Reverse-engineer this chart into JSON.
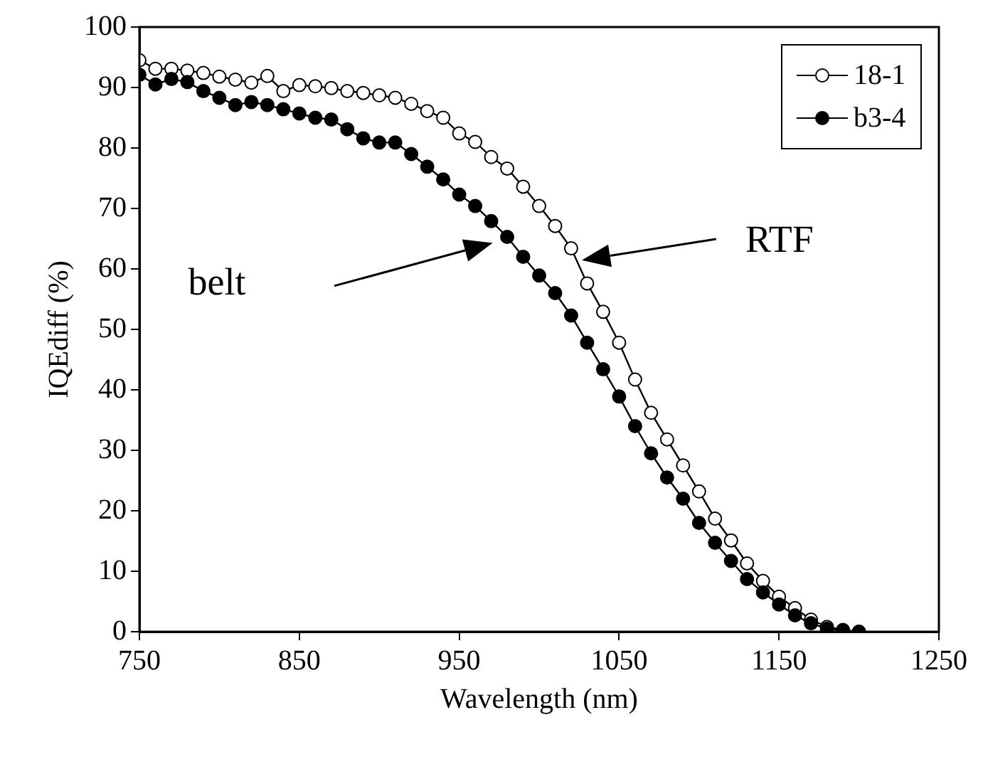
{
  "chart_data": {
    "type": "line",
    "xlabel": "Wavelength (nm)",
    "ylabel": "IQEdiff (%)",
    "x": [
      750,
      760,
      770,
      780,
      790,
      800,
      810,
      820,
      830,
      840,
      850,
      860,
      870,
      880,
      890,
      900,
      910,
      920,
      930,
      940,
      950,
      960,
      970,
      980,
      990,
      1000,
      1010,
      1020,
      1030,
      1040,
      1050,
      1060,
      1070,
      1080,
      1090,
      1100,
      1110,
      1120,
      1130,
      1140,
      1150,
      1160,
      1170,
      1180,
      1190,
      1200
    ],
    "series": [
      {
        "name": "18-1",
        "color": "#000000",
        "values": [
          94.5,
          93.1,
          93.1,
          92.8,
          92.4,
          91.8,
          91.3,
          90.8,
          91.9,
          89.4,
          90.4,
          90.2,
          89.9,
          89.4,
          89.1,
          88.7,
          88.3,
          87.3,
          86.1,
          85.0,
          82.4,
          81.0,
          78.5,
          76.6,
          73.6,
          70.4,
          67.1,
          63.4,
          57.6,
          52.9,
          47.8,
          41.7,
          36.2,
          31.8,
          27.5,
          23.2,
          18.7,
          15.1,
          11.3,
          8.4,
          5.8,
          3.9,
          2.0,
          0.8,
          0.3,
          0
        ]
      },
      {
        "name": "b3-4",
        "color": "#000000",
        "values": [
          92.1,
          90.5,
          91.4,
          90.9,
          89.4,
          88.3,
          87.1,
          87.6,
          87.1,
          86.4,
          85.7,
          85.0,
          84.7,
          83.1,
          81.6,
          80.9,
          80.9,
          79.0,
          76.9,
          74.8,
          72.3,
          70.4,
          67.9,
          65.3,
          62.0,
          58.9,
          56.0,
          52.3,
          47.8,
          43.4,
          38.9,
          34.0,
          29.5,
          25.5,
          22.0,
          18.0,
          14.7,
          11.7,
          8.7,
          6.5,
          4.5,
          2.7,
          1.4,
          0.5,
          0.2,
          0
        ]
      }
    ],
    "xlim": [
      750,
      1250
    ],
    "xticks": [
      750,
      850,
      950,
      1050,
      1150,
      1250
    ],
    "ylim": [
      0,
      100
    ],
    "yticks": [
      0,
      10,
      20,
      30,
      40,
      50,
      60,
      70,
      80,
      90,
      100
    ],
    "grid": false,
    "legend": "top right",
    "marker": "circle",
    "line_style": "solid",
    "annotations": [
      "belt",
      "RTF"
    ]
  }
}
